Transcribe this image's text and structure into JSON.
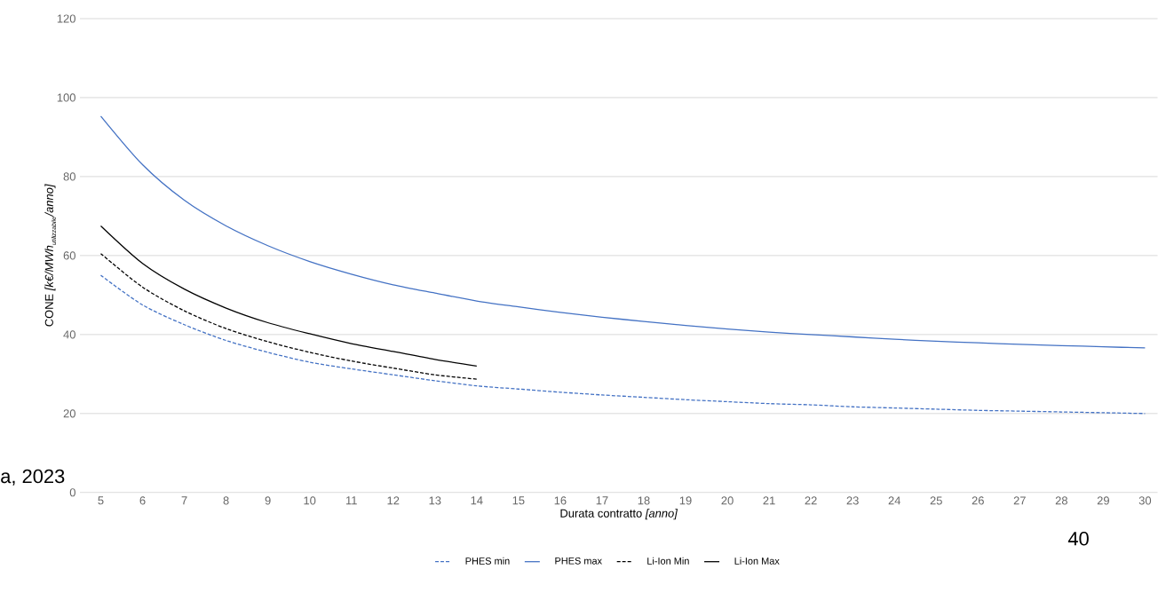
{
  "chart_data": {
    "type": "line",
    "xlabel": "Durata contratto *[anno]*",
    "ylabel": "\\mbox{CONE \\itshape [k€/MWh}_{\\mbox{\\scriptsize\\itshape utilizzabile}}\\mbox{\\itshape /anno]}",
    "xlim": [
      4.5,
      30.3
    ],
    "ylim": [
      0,
      120
    ],
    "xticks": [
      5,
      6,
      7,
      8,
      9,
      10,
      11,
      12,
      13,
      14,
      15,
      16,
      17,
      18,
      19,
      20,
      21,
      22,
      23,
      24,
      25,
      26,
      27,
      28,
      29,
      30
    ],
    "yticks": [
      0,
      20,
      40,
      60,
      80,
      100,
      120
    ],
    "grid": "y",
    "legend": "bottom",
    "marker": "none",
    "annotations": [
      "a, 2023",
      "40"
    ],
    "series": [
      {
        "name": "PHES min",
        "color": "#4472c4",
        "line_style": "dashed",
        "x": [
          5,
          6,
          7,
          8,
          9,
          10,
          11,
          12,
          13,
          14,
          15,
          16,
          17,
          18,
          19,
          20,
          21,
          22,
          23,
          24,
          25,
          26,
          27,
          28,
          29,
          30
        ],
        "values": [
          55,
          47.5,
          42.5,
          38.5,
          35.5,
          33,
          31.3,
          29.8,
          28.3,
          27,
          26.2,
          25.4,
          24.7,
          24.1,
          23.5,
          23,
          22.5,
          22.2,
          21.7,
          21.4,
          21.1,
          20.8,
          20.6,
          20.4,
          20.2,
          20
        ]
      },
      {
        "name": "PHES max",
        "color": "#4472c4",
        "line_style": "solid",
        "x": [
          5,
          6,
          7,
          8,
          9,
          10,
          11,
          12,
          13,
          14,
          15,
          16,
          17,
          18,
          19,
          20,
          21,
          22,
          23,
          24,
          25,
          26,
          27,
          28,
          29,
          30
        ],
        "values": [
          95.3,
          83,
          74,
          67.5,
          62.5,
          58.5,
          55.3,
          52.6,
          50.5,
          48.5,
          47,
          45.6,
          44.4,
          43.3,
          42.3,
          41.4,
          40.6,
          40,
          39.4,
          38.8,
          38.3,
          37.9,
          37.5,
          37.2,
          36.9,
          36.6
        ]
      },
      {
        "name": "Li-Ion Min",
        "color": "#000000",
        "line_style": "dashed",
        "x": [
          5,
          6,
          7,
          8,
          9,
          10,
          11,
          12,
          13,
          14
        ],
        "values": [
          60.5,
          52,
          46,
          41.5,
          38.2,
          35.5,
          33.3,
          31.5,
          29.8,
          28.7
        ]
      },
      {
        "name": "Li-Ion Max",
        "color": "#000000",
        "line_style": "solid",
        "x": [
          5,
          6,
          7,
          8,
          9,
          10,
          11,
          12,
          13,
          14
        ],
        "values": [
          67.5,
          58,
          51.5,
          46.7,
          43,
          40.2,
          37.7,
          35.7,
          33.7,
          32
        ]
      }
    ]
  }
}
